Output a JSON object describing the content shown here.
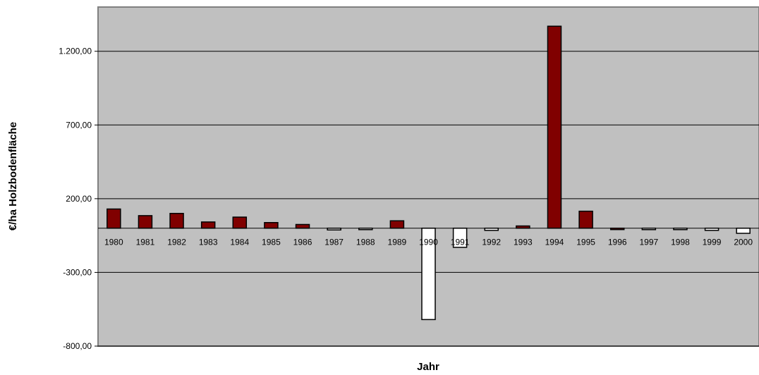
{
  "chart_data": {
    "type": "bar",
    "title": "",
    "xlabel": "Jahr",
    "ylabel": "€/ha Holzbodenfläche",
    "categories": [
      "1980",
      "1981",
      "1982",
      "1983",
      "1984",
      "1985",
      "1986",
      "1987",
      "1988",
      "1989",
      "1990",
      "1991",
      "1992",
      "1993",
      "1994",
      "1995",
      "1996",
      "1997",
      "1998",
      "1999",
      "2000"
    ],
    "values": [
      130,
      85,
      100,
      42,
      75,
      38,
      25,
      -12,
      -10,
      50,
      -620,
      -130,
      -15,
      15,
      1370,
      115,
      0,
      -10,
      -10,
      -15,
      -35
    ],
    "y_ticks": [
      -800,
      -300,
      200,
      700,
      1200
    ],
    "y_tick_labels": [
      "-800,00",
      "-300,00",
      "200,00",
      "700,00",
      "1.200,00"
    ],
    "ylim": [
      -800,
      1500
    ],
    "grid": "horizontal",
    "colors": {
      "positive": "#800000",
      "negative": "#ffffff",
      "plot_background": "#c0c0c0",
      "gridline": "#000000"
    }
  }
}
